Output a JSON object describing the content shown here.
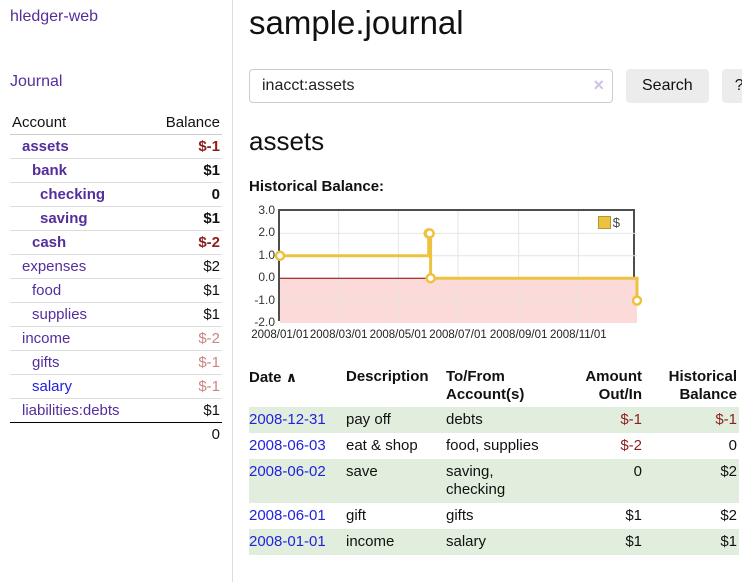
{
  "theme": {
    "colors": {
      "purple": "#552e9b",
      "blue": "#2222dd",
      "strongneg": "#8f1d1d",
      "paleneg": "#c98585",
      "stripe": "#e1eedd",
      "gold": "#edc240",
      "goldborder": "#b5952f",
      "pink": "#fcdada",
      "zero": "#8b0000",
      "plotborder": "#4d4d4d",
      "grid": "#e4e4e4",
      "btnbg": "#ececec",
      "border": "#dddddd",
      "clear": "#cfc2e4"
    }
  },
  "sidebar": {
    "app_title": "hledger-web",
    "journal_label": "Journal",
    "accounts_table": {
      "headers": {
        "account": "Account",
        "balance": "Balance"
      },
      "rows": [
        {
          "name": "assets",
          "balance": "$-1",
          "depth": 1,
          "bold": true,
          "tone": "strong",
          "link": "purple"
        },
        {
          "name": "bank",
          "balance": "$1",
          "depth": 2,
          "bold": true,
          "tone": "normal",
          "link": "purple"
        },
        {
          "name": "checking",
          "balance": "0",
          "depth": 3,
          "bold": true,
          "tone": "normal",
          "link": "purple"
        },
        {
          "name": "saving",
          "balance": "$1",
          "depth": 3,
          "bold": true,
          "tone": "normal",
          "link": "purple"
        },
        {
          "name": "cash",
          "balance": "$-2",
          "depth": 2,
          "bold": true,
          "tone": "strong",
          "link": "purple"
        },
        {
          "name": "expenses",
          "balance": "$2",
          "depth": 1,
          "bold": false,
          "tone": "normal",
          "link": "purple"
        },
        {
          "name": "food",
          "balance": "$1",
          "depth": 2,
          "bold": false,
          "tone": "normal",
          "link": "purple"
        },
        {
          "name": "supplies",
          "balance": "$1",
          "depth": 2,
          "bold": false,
          "tone": "normal",
          "link": "purple"
        },
        {
          "name": "income",
          "balance": "$-2",
          "depth": 1,
          "bold": false,
          "tone": "pale",
          "link": "purple"
        },
        {
          "name": "gifts",
          "balance": "$-1",
          "depth": 2,
          "bold": false,
          "tone": "pale",
          "link": "purple"
        },
        {
          "name": "salary",
          "balance": "$-1",
          "depth": 2,
          "bold": false,
          "tone": "pale",
          "link": "blue"
        },
        {
          "name": "liabilities:debts",
          "balance": "$1",
          "depth": 1,
          "bold": false,
          "tone": "normal",
          "link": "purple"
        }
      ],
      "total": "0"
    }
  },
  "main": {
    "title": "sample.journal",
    "search": {
      "value": "inacct:assets",
      "clear_icon": "×",
      "button_label": "Search",
      "help_label": "?"
    },
    "account_heading": "assets",
    "chart": {
      "label": "Historical Balance:",
      "legend": "$",
      "chart_data": {
        "type": "line-step",
        "title": "Historical Balance",
        "series": [
          {
            "name": "$",
            "color": "#edc240",
            "points": [
              [
                "2008-01-01",
                1
              ],
              [
                "2008-06-01",
                2
              ],
              [
                "2008-06-02",
                2
              ],
              [
                "2008-06-03",
                0
              ],
              [
                "2008-12-31",
                -1
              ]
            ]
          }
        ],
        "x_range": [
          "2008-01-01",
          "2008-12-31"
        ],
        "ylim": [
          -2,
          3
        ],
        "y_ticks": [
          "3.0",
          "2.0",
          "1.0",
          "0.0",
          "-1.0",
          "-2.0"
        ],
        "y_grid": [
          2,
          1,
          -1
        ],
        "x_tick_dates": [
          "2008-01-01",
          "2008-03-01",
          "2008-05-01",
          "2008-07-01",
          "2008-09-01",
          "2008-11-01"
        ],
        "x_tick_labels": [
          "2008/01/01",
          "2008/03/01",
          "2008/05/01",
          "2008/07/01",
          "2008/09/01",
          "2008/11/01"
        ],
        "grid": true,
        "legend_position": "top-right",
        "negative_region": true
      }
    }
  },
  "register": {
    "headers": {
      "date": "Date",
      "sort_icon": "∧",
      "description": "Description",
      "tofrom": "To/From Account(s)",
      "amount": "Amount Out/In",
      "balance": "Historical Balance"
    },
    "rows": [
      {
        "date": "2008-12-31",
        "description": "pay off",
        "tofrom": "debts",
        "amount": "$-1",
        "amount_neg": true,
        "balance": "$-1",
        "balance_neg": true
      },
      {
        "date": "2008-06-03",
        "description": "eat & shop",
        "tofrom": "food, supplies",
        "amount": "$-2",
        "amount_neg": true,
        "balance": "0",
        "balance_neg": false
      },
      {
        "date": "2008-06-02",
        "description": "save",
        "tofrom": "saving, checking",
        "amount": "0",
        "amount_neg": false,
        "balance": "$2",
        "balance_neg": false
      },
      {
        "date": "2008-06-01",
        "description": "gift",
        "tofrom": "gifts",
        "amount": "$1",
        "amount_neg": false,
        "balance": "$2",
        "balance_neg": false
      },
      {
        "date": "2008-01-01",
        "description": "income",
        "tofrom": "salary",
        "amount": "$1",
        "amount_neg": false,
        "balance": "$1",
        "balance_neg": false
      }
    ]
  }
}
